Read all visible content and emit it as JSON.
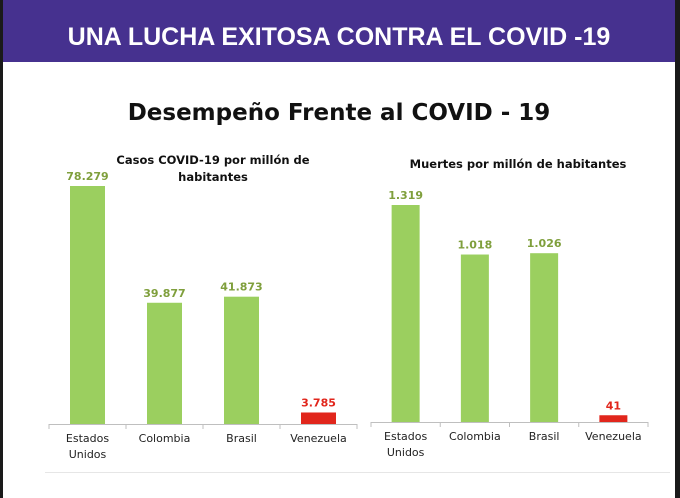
{
  "banner": {
    "title": "UNA LUCHA EXITOSA CONTRA EL COVID -19"
  },
  "slide_title": "Desempeño Frente al COVID - 19",
  "colors": {
    "banner": "#46318f",
    "green": "#9bcf5f",
    "green_label": "#7f9f3c",
    "red": "#e1261c"
  },
  "chart_data": [
    {
      "type": "bar",
      "title": "Casos COVID-19 por millón de habitantes",
      "categories": [
        "Estados Unidos",
        "Colombia",
        "Brasil",
        "Venezuela"
      ],
      "category_lines": [
        [
          "Estados",
          "Unidos"
        ],
        [
          "Colombia"
        ],
        [
          "Brasil"
        ],
        [
          "Venezuela"
        ]
      ],
      "values": [
        78279,
        39877,
        41873,
        3785
      ],
      "value_labels": [
        "78.279",
        "39.877",
        "41.873",
        "3.785"
      ],
      "highlight": [
        false,
        false,
        false,
        true
      ],
      "ylim": [
        0,
        78279
      ],
      "grid": false,
      "legend": "none"
    },
    {
      "type": "bar",
      "title": "Muertes por millón de habitantes",
      "categories": [
        "Estados Unidos",
        "Colombia",
        "Brasil",
        "Venezuela"
      ],
      "category_lines": [
        [
          "Estados",
          "Unidos"
        ],
        [
          "Colombia"
        ],
        [
          "Brasil"
        ],
        [
          "Venezuela"
        ]
      ],
      "values": [
        1319,
        1018,
        1026,
        41
      ],
      "value_labels": [
        "1.319",
        "1.018",
        "1.026",
        "41"
      ],
      "highlight": [
        false,
        false,
        false,
        true
      ],
      "ylim": [
        0,
        1319
      ],
      "grid": false,
      "legend": "none"
    }
  ]
}
